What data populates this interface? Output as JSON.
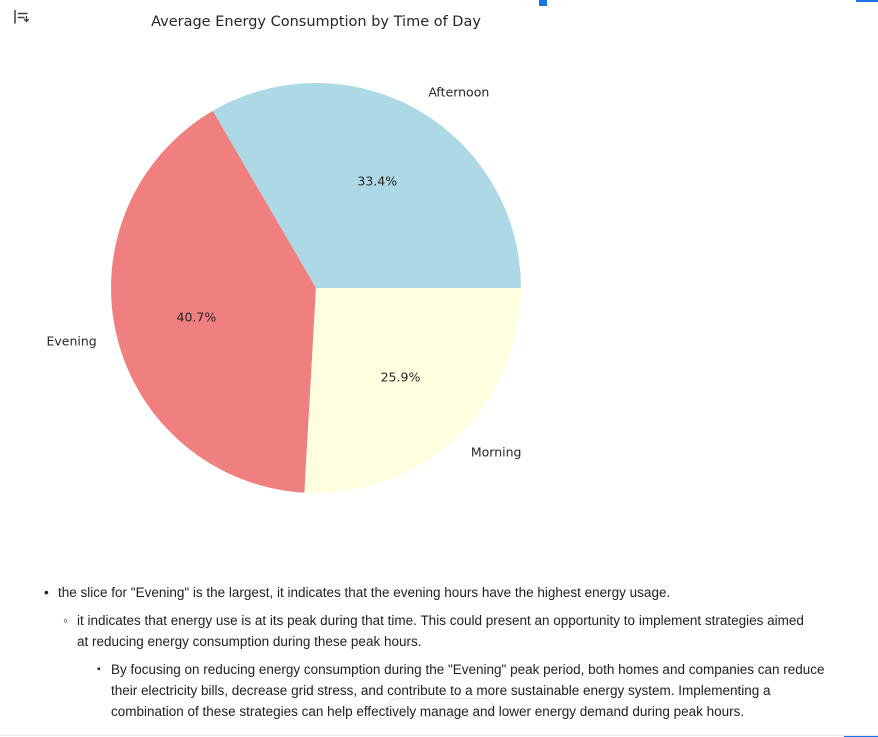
{
  "accent_color": "#1a73e8",
  "icons": {
    "toggle_output": "collapse-expand-output-control"
  },
  "chart_data": {
    "type": "pie",
    "title": "Average Energy Consumption by Time of Day",
    "labels": [
      "Afternoon",
      "Evening",
      "Morning"
    ],
    "values": [
      33.4,
      40.7,
      25.9
    ],
    "percent_labels": [
      "33.4%",
      "40.7%",
      "25.9%"
    ],
    "colors": [
      "#ADD8E6",
      "#F08080",
      "#FFFFE0"
    ],
    "start_angle": 0,
    "direction": "counterclockwise",
    "label_distance": 1.1,
    "pct_distance": 0.6,
    "legend": "none"
  },
  "notes": {
    "items": [
      {
        "level": 1,
        "marker": "•",
        "text": "the slice for \"Evening\" is the largest, it indicates that the evening hours have the highest energy usage."
      },
      {
        "level": 2,
        "marker": "◦",
        "text": "it indicates that energy use is at its peak during that time. This could present an opportunity to implement strategies aimed at reducing energy consumption during these peak hours."
      },
      {
        "level": 3,
        "marker": "▪",
        "text": "By focusing on reducing energy consumption during the \"Evening\" peak period, both homes and companies can reduce their electricity bills, decrease grid stress, and contribute to a more sustainable energy system. Implementing a combination of these strategies can help effectively manage and lower energy demand during peak hours."
      }
    ]
  }
}
